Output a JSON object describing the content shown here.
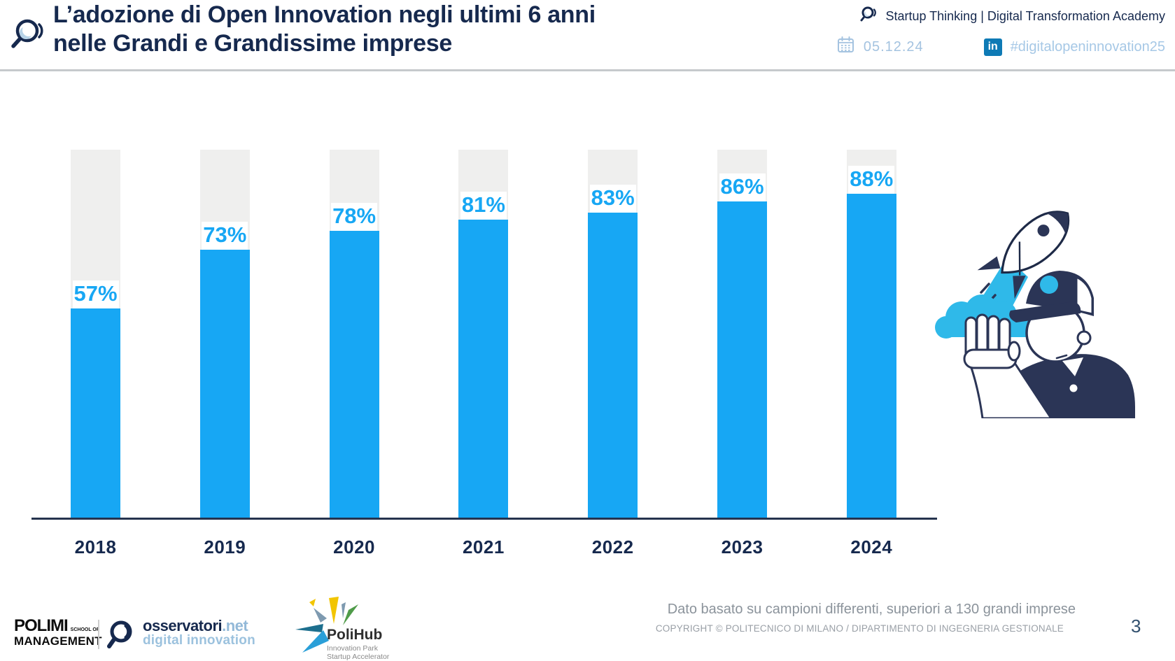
{
  "theme": {
    "navy": "#16294e",
    "bar_blue": "#17a7f4",
    "track_gray": "#efefee",
    "light_blue": "#a4c3e0",
    "cyan": "#2fb9e9",
    "linkedin_blue": "#0e7ab5"
  },
  "header": {
    "title_line1": "L’adozione di Open Innovation negli ultimi 6 anni",
    "title_line2": "nelle Grandi e Grandissime imprese",
    "event": "Startup Thinking | Digital Transformation Academy",
    "date": "05.12.24",
    "linkedin_label": "in",
    "hashtag": "#digitalopeninnovation25"
  },
  "chart_data": {
    "type": "bar",
    "title": "",
    "xlabel": "",
    "ylabel": "",
    "categories": [
      "2018",
      "2019",
      "2020",
      "2021",
      "2022",
      "2023",
      "2024"
    ],
    "values": [
      57,
      73,
      78,
      81,
      83,
      86,
      88
    ],
    "value_labels": [
      "57%",
      "73%",
      "78%",
      "81%",
      "83%",
      "86%",
      "88%"
    ],
    "ylim": [
      0,
      100
    ],
    "grid": false,
    "legend": "none",
    "bar_color": "#17a7f4",
    "track_color": "#efefee",
    "track_represents": "100%"
  },
  "footer": {
    "note": "Dato basato su campioni differenti, superiori a 130 grandi imprese",
    "copyright": "COPYRIGHT © POLITECNICO DI MILANO / DIPARTIMENTO DI INGEGNERIA GESTIONALE",
    "page_number": "3",
    "logos": {
      "polimi_line1": "POLIMI",
      "polimi_school": "SCHOOL OF",
      "polimi_line2": "MANAGEMENT",
      "osservatori_name": "osservatori",
      "osservatori_net": ".net",
      "osservatori_sub": "digital innovation",
      "polihub_name": "PoliHub",
      "polihub_sub1": "Innovation Park",
      "polihub_sub2": "Startup Accelerator"
    }
  }
}
